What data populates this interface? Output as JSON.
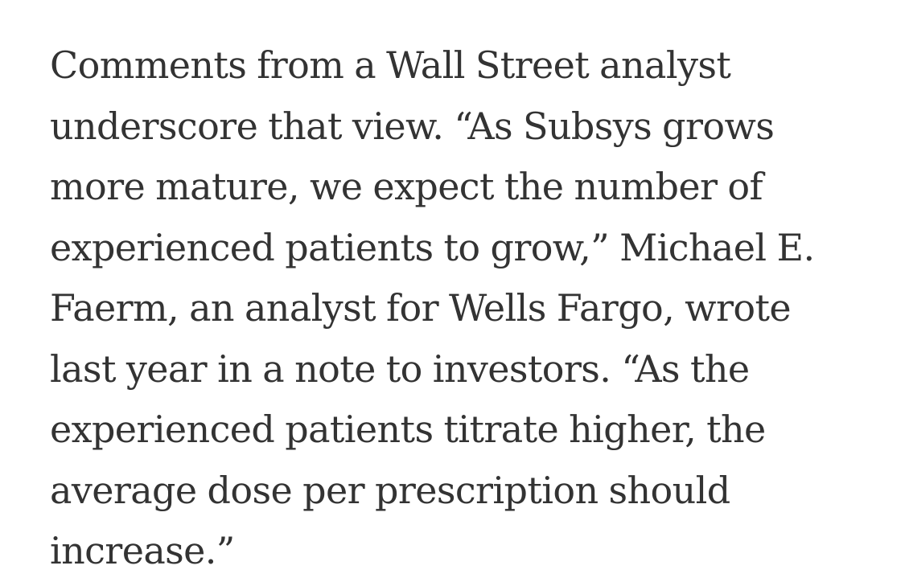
{
  "article": {
    "paragraph_lines": [
      "Comments from a Wall Street analyst",
      "underscore that view. “As Subsys grows",
      "more mature, we expect the number of",
      "experienced patients to grow,” Michael E.",
      "Faerm, an analyst for Wells Fargo, wrote",
      "last year in a note to investors. “As the",
      "experienced patients titrate higher, the",
      "average dose per prescription should",
      "increase.”"
    ]
  }
}
